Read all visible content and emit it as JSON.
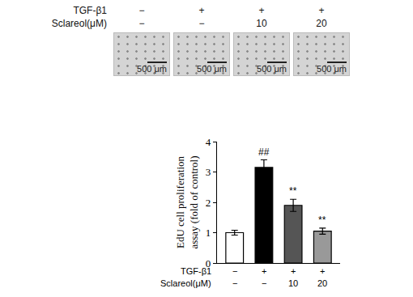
{
  "chart_data": {
    "type": "bar",
    "y_label": [
      "EdU cell proliferation",
      "assay (fold of control)"
    ],
    "categories": [
      null,
      null,
      null,
      null
    ],
    "values": [
      1.0,
      3.15,
      1.9,
      1.05
    ],
    "errors": [
      0.08,
      0.25,
      0.2,
      0.1
    ],
    "significance": [
      null,
      "##",
      "**",
      "**"
    ],
    "colors": [
      "#ffffff",
      "#000000",
      "#555555",
      "#999999"
    ],
    "conditions": [
      {
        "label": "TGF-β1",
        "values": [
          "−",
          "+",
          "+",
          "+"
        ]
      },
      {
        "label": "Sclareol(μM)",
        "values": [
          "−",
          "−",
          "10",
          "20"
        ]
      }
    ],
    "ylim": [
      0,
      4
    ],
    "yticks": [
      0,
      1,
      2,
      3,
      4
    ],
    "grid": false
  },
  "image_panels": {
    "conditions": [
      {
        "label": "TGF-β1",
        "values": [
          "−",
          "+",
          "+",
          "+"
        ]
      },
      {
        "label": "Sclareol(μM)",
        "values": [
          "−",
          "−",
          "10",
          "20"
        ]
      }
    ],
    "scale_bars": [
      "500 μm",
      "500 μm",
      "500 μm",
      "500 μm"
    ]
  }
}
